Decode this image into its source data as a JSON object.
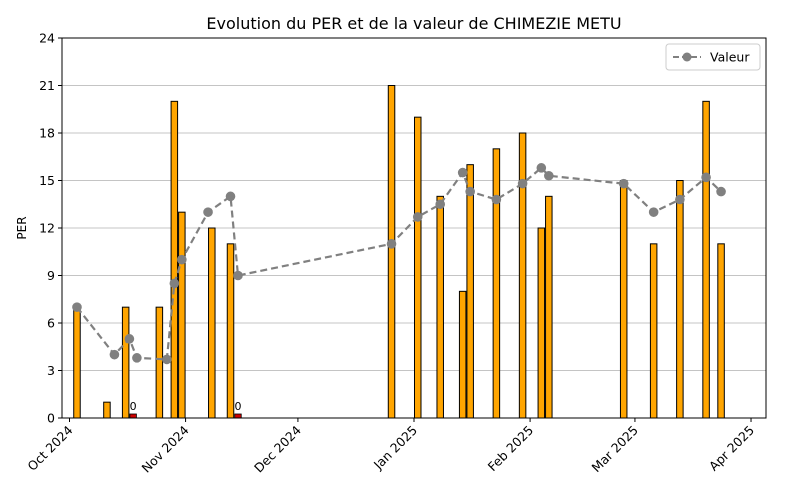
{
  "chart_data": {
    "type": "bar",
    "title": "Evolution du PER et de la valeur de CHIMEZIE METU",
    "xlabel": "",
    "ylabel": "PER",
    "ylim": [
      0,
      24
    ],
    "y_ticks": [
      "0",
      "3",
      "6",
      "9",
      "12",
      "15",
      "18",
      "21",
      "24"
    ],
    "x_ticks": [
      {
        "date": "2024-10-01",
        "label": "Oct 2024"
      },
      {
        "date": "2024-11-01",
        "label": "Nov 2024"
      },
      {
        "date": "2024-12-01",
        "label": "Dec 2024"
      },
      {
        "date": "2025-01-01",
        "label": "Jan 2025"
      },
      {
        "date": "2025-02-01",
        "label": "Feb 2025"
      },
      {
        "date": "2025-03-01",
        "label": "Mar 2025"
      },
      {
        "date": "2025-04-01",
        "label": "Apr 2025"
      }
    ],
    "grid": "y",
    "legend": {
      "position": "top-right",
      "entries": [
        "Valeur"
      ]
    },
    "colors": {
      "bar": "#FFA500",
      "bar_zero": "#CC0000",
      "line": "#808080",
      "grid": "#b0b0b0"
    },
    "bars": [
      {
        "date": "2024-10-03",
        "per": 7
      },
      {
        "date": "2024-10-11",
        "per": 1
      },
      {
        "date": "2024-10-16",
        "per": 7
      },
      {
        "date": "2024-10-18",
        "per": 0,
        "label": "0"
      },
      {
        "date": "2024-10-25",
        "per": 7
      },
      {
        "date": "2024-10-29",
        "per": 20
      },
      {
        "date": "2024-10-31",
        "per": 13
      },
      {
        "date": "2024-11-08",
        "per": 12
      },
      {
        "date": "2024-11-13",
        "per": 11
      },
      {
        "date": "2024-11-15",
        "per": 0,
        "label": "0"
      },
      {
        "date": "2024-12-26",
        "per": 21
      },
      {
        "date": "2025-01-02",
        "per": 19
      },
      {
        "date": "2025-01-08",
        "per": 14
      },
      {
        "date": "2025-01-14",
        "per": 8
      },
      {
        "date": "2025-01-16",
        "per": 16
      },
      {
        "date": "2025-01-23",
        "per": 17
      },
      {
        "date": "2025-01-30",
        "per": 18
      },
      {
        "date": "2025-02-04",
        "per": 12
      },
      {
        "date": "2025-02-06",
        "per": 14
      },
      {
        "date": "2025-02-26",
        "per": 15
      },
      {
        "date": "2025-03-06",
        "per": 11
      },
      {
        "date": "2025-03-13",
        "per": 15
      },
      {
        "date": "2025-03-20",
        "per": 20
      },
      {
        "date": "2025-03-24",
        "per": 11
      }
    ],
    "series": [
      {
        "name": "Valeur",
        "style": "dashed line with circle markers",
        "points": [
          {
            "date": "2024-10-03",
            "value": 7.0
          },
          {
            "date": "2024-10-13",
            "value": 4.0
          },
          {
            "date": "2024-10-17",
            "value": 5.0
          },
          {
            "date": "2024-10-19",
            "value": 3.8
          },
          {
            "date": "2024-10-27",
            "value": 3.7
          },
          {
            "date": "2024-10-29",
            "value": 8.5
          },
          {
            "date": "2024-10-31",
            "value": 10.0
          },
          {
            "date": "2024-11-07",
            "value": 13.0
          },
          {
            "date": "2024-11-13",
            "value": 14.0
          },
          {
            "date": "2024-11-15",
            "value": 9.0
          },
          {
            "date": "2024-12-26",
            "value": 11.0
          },
          {
            "date": "2025-01-02",
            "value": 12.7
          },
          {
            "date": "2025-01-08",
            "value": 13.5
          },
          {
            "date": "2025-01-14",
            "value": 15.5
          },
          {
            "date": "2025-01-16",
            "value": 14.3
          },
          {
            "date": "2025-01-23",
            "value": 13.8
          },
          {
            "date": "2025-01-30",
            "value": 14.8
          },
          {
            "date": "2025-02-04",
            "value": 15.8
          },
          {
            "date": "2025-02-06",
            "value": 15.3
          },
          {
            "date": "2025-02-26",
            "value": 14.8
          },
          {
            "date": "2025-03-06",
            "value": 13.0
          },
          {
            "date": "2025-03-13",
            "value": 13.8
          },
          {
            "date": "2025-03-20",
            "value": 15.2
          },
          {
            "date": "2025-03-24",
            "value": 14.3
          }
        ]
      }
    ]
  }
}
